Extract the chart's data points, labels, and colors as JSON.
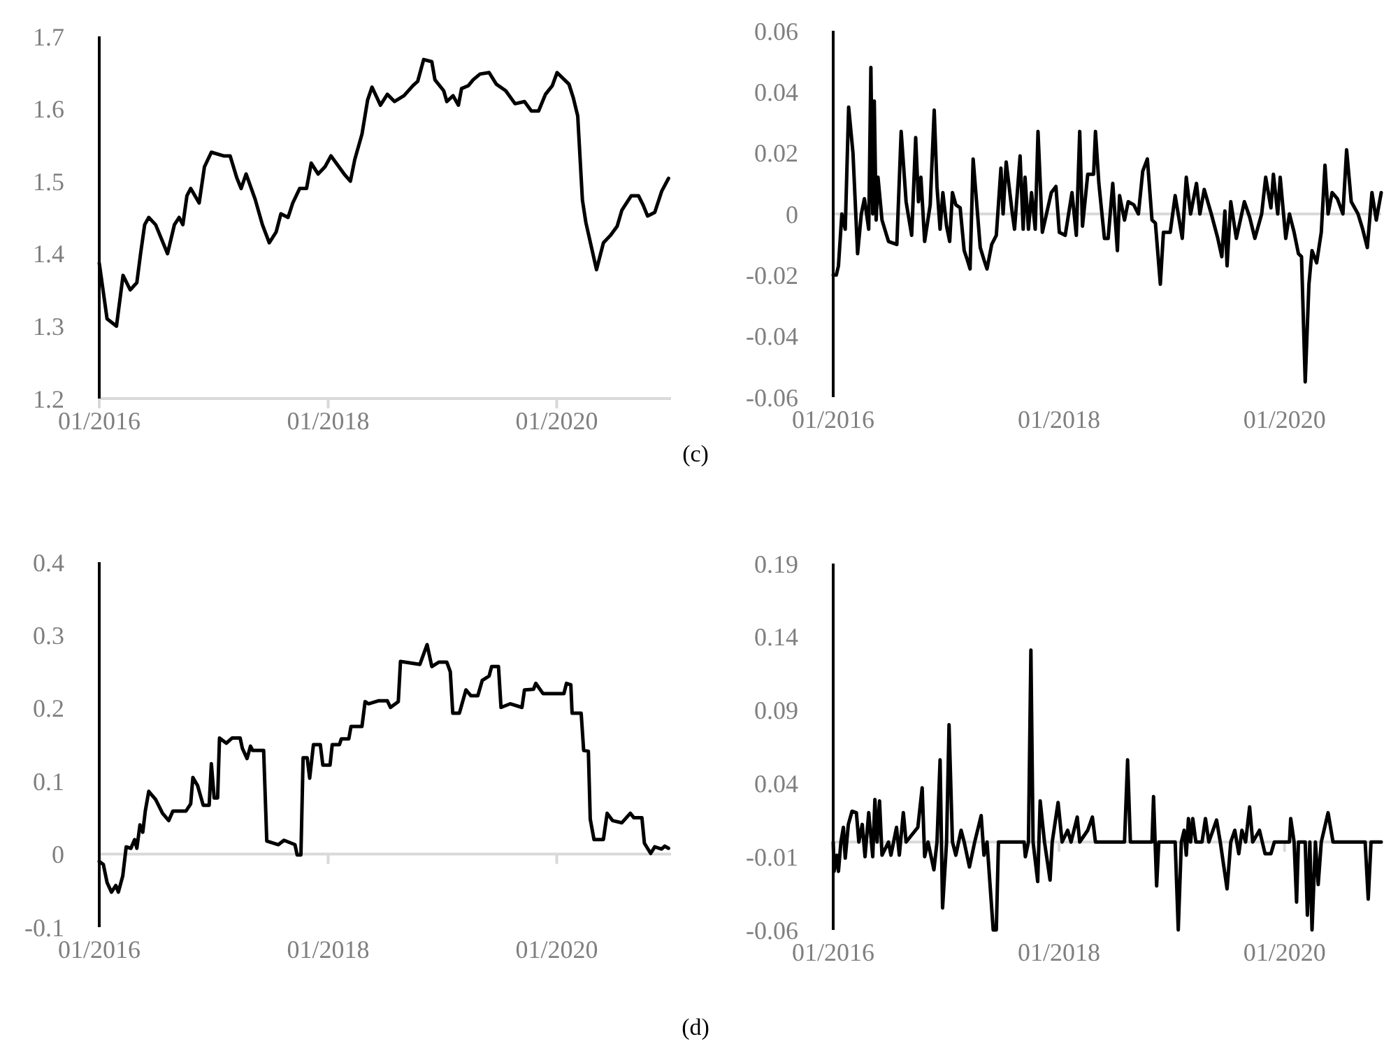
{
  "chart_data": [
    {
      "type": "line",
      "xlim": [
        "2016-01-01",
        "2020-12-31"
      ],
      "ylim": [
        1.2,
        1.7
      ],
      "yticks": [
        1.2,
        1.3,
        1.4,
        1.5,
        1.6,
        1.7
      ],
      "xticks": [
        {
          "value": "2016-01-01",
          "label": "01/2016"
        },
        {
          "value": "2018-01-01",
          "label": "01/2018"
        },
        {
          "value": "2020-01-01",
          "label": "01/2020"
        }
      ],
      "x": [
        "2016-01-01",
        "2016-01-26",
        "2016-02-25",
        "2016-03-17",
        "2016-04-09",
        "2016-04-30",
        "2016-05-12",
        "2016-05-25",
        "2016-06-07",
        "2016-06-29",
        "2016-08-06",
        "2016-08-28",
        "2016-09-12",
        "2016-09-24",
        "2016-10-07",
        "2016-10-19",
        "2016-11-15",
        "2016-12-02",
        "2016-12-24",
        "2017-02-01",
        "2017-02-22",
        "2017-03-15",
        "2017-03-29",
        "2017-04-14",
        "2017-05-13",
        "2017-06-05",
        "2017-06-27",
        "2017-07-19",
        "2017-08-03",
        "2017-08-26",
        "2017-09-10",
        "2017-10-02",
        "2017-10-24",
        "2017-11-08",
        "2017-11-30",
        "2017-12-22",
        "2018-01-10",
        "2018-02-21",
        "2018-03-13",
        "2018-03-27",
        "2018-04-19",
        "2018-05-07",
        "2018-05-21",
        "2018-06-17",
        "2018-07-09",
        "2018-08-01",
        "2018-08-31",
        "2018-09-29",
        "2018-10-14",
        "2018-11-02",
        "2018-11-28",
        "2018-12-08",
        "2019-01-05",
        "2019-01-15",
        "2019-02-04",
        "2019-02-21",
        "2019-03-03",
        "2019-03-25",
        "2019-04-09",
        "2019-05-01",
        "2019-05-30",
        "2019-06-22",
        "2019-07-22",
        "2019-08-21",
        "2019-09-20",
        "2019-10-12",
        "2019-11-04",
        "2019-11-26",
        "2019-12-18",
        "2020-01-02",
        "2020-02-09",
        "2020-02-23",
        "2020-03-08",
        "2020-03-23",
        "2020-04-03",
        "2020-05-07",
        "2020-05-29",
        "2020-06-20",
        "2020-07-12",
        "2020-07-27",
        "2020-08-26",
        "2020-09-18",
        "2020-10-03",
        "2020-10-17",
        "2020-11-09",
        "2020-12-01",
        "2020-12-23"
      ],
      "series": [
        {
          "color": "#000000",
          "values": [
            1.387,
            1.31,
            1.3,
            1.37,
            1.35,
            1.36,
            1.4,
            1.44,
            1.45,
            1.44,
            1.4,
            1.44,
            1.45,
            1.44,
            1.48,
            1.49,
            1.47,
            1.52,
            1.54,
            1.535,
            1.535,
            1.505,
            1.49,
            1.51,
            1.475,
            1.44,
            1.415,
            1.43,
            1.455,
            1.45,
            1.47,
            1.49,
            1.49,
            1.525,
            1.51,
            1.52,
            1.535,
            1.51,
            1.5,
            1.53,
            1.565,
            1.612,
            1.63,
            1.605,
            1.62,
            1.61,
            1.618,
            1.632,
            1.638,
            1.668,
            1.665,
            1.64,
            1.625,
            1.61,
            1.618,
            1.605,
            1.628,
            1.632,
            1.64,
            1.648,
            1.65,
            1.634,
            1.625,
            1.607,
            1.61,
            1.597,
            1.597,
            1.62,
            1.632,
            1.65,
            1.634,
            1.615,
            1.59,
            1.474,
            1.443,
            1.378,
            1.415,
            1.425,
            1.438,
            1.46,
            1.48,
            1.48,
            1.467,
            1.452,
            1.457,
            1.486,
            1.504
          ]
        }
      ]
    },
    {
      "type": "line",
      "xlim": [
        "2016-01-01",
        "2020-11-09"
      ],
      "ylim": [
        -0.06,
        0.06
      ],
      "yticks": [
        -0.06,
        -0.04,
        -0.02,
        0,
        0.02,
        0.04,
        0.06
      ],
      "xticks": [
        {
          "value": "2016-01-01",
          "label": "01/2016"
        },
        {
          "value": "2018-01-01",
          "label": "01/2018"
        },
        {
          "value": "2020-01-01",
          "label": "01/2020"
        }
      ],
      "annotations": [
        "(c)"
      ],
      "x": [
        "2016-01-01",
        "2016-01-11",
        "2016-01-18",
        "2016-01-29",
        "2016-02-09",
        "2016-02-20",
        "2016-03-05",
        "2016-03-20",
        "2016-04-01",
        "2016-04-11",
        "2016-04-25",
        "2016-05-02",
        "2016-05-08",
        "2016-05-13",
        "2016-05-19",
        "2016-05-25",
        "2016-06-07",
        "2016-06-28",
        "2016-07-25",
        "2016-08-08",
        "2016-08-24",
        "2016-09-11",
        "2016-09-24",
        "2016-10-03",
        "2016-10-11",
        "2016-10-23",
        "2016-11-10",
        "2016-11-23",
        "2016-12-02",
        "2016-12-12",
        "2016-12-21",
        "2017-01-02",
        "2017-01-12",
        "2017-01-21",
        "2017-02-01",
        "2017-02-15",
        "2017-02-28",
        "2017-03-10",
        "2017-03-19",
        "2017-03-29",
        "2017-04-21",
        "2017-05-03",
        "2017-05-13",
        "2017-05-28",
        "2017-06-12",
        "2017-06-27",
        "2017-07-04",
        "2017-07-14",
        "2017-08-03",
        "2017-08-10",
        "2017-08-28",
        "2017-09-07",
        "2017-09-13",
        "2017-09-24",
        "2017-10-04",
        "2017-10-16",
        "2017-10-25",
        "2017-11-08",
        "2017-12-07",
        "2017-12-22",
        "2018-01-02",
        "2018-01-21",
        "2018-02-12",
        "2018-02-26",
        "2018-03-09",
        "2018-03-18",
        "2018-04-04",
        "2018-04-23",
        "2018-04-29",
        "2018-05-10",
        "2018-05-28",
        "2018-06-09",
        "2018-06-24",
        "2018-07-09",
        "2018-07-16",
        "2018-08-01",
        "2018-08-13",
        "2018-08-31",
        "2018-09-15",
        "2018-09-29",
        "2018-10-14",
        "2018-10-29",
        "2018-11-09",
        "2018-11-25",
        "2018-12-05",
        "2018-12-27",
        "2019-01-12",
        "2019-02-04",
        "2019-02-17",
        "2019-03-03",
        "2019-03-22",
        "2019-04-02",
        "2019-04-16",
        "2019-05-09",
        "2019-05-30",
        "2019-06-12",
        "2019-06-22",
        "2019-06-29",
        "2019-07-11",
        "2019-07-29",
        "2019-08-24",
        "2019-09-10",
        "2019-09-27",
        "2019-10-19",
        "2019-11-01",
        "2019-11-18",
        "2019-11-26",
        "2019-12-10",
        "2019-12-18",
        "2020-01-05",
        "2020-01-17",
        "2020-02-01",
        "2020-02-15",
        "2020-02-25",
        "2020-03-08",
        "2020-03-20",
        "2020-03-30",
        "2020-04-14",
        "2020-04-29",
        "2020-05-11",
        "2020-05-21",
        "2020-06-03",
        "2020-06-20",
        "2020-07-08",
        "2020-07-20",
        "2020-08-04",
        "2020-08-26",
        "2020-09-10",
        "2020-09-25",
        "2020-10-10",
        "2020-10-24",
        "2020-11-09"
      ],
      "series": [
        {
          "color": "#000000",
          "values": [
            -0.02,
            -0.02,
            -0.017,
            0,
            -0.005,
            0.035,
            0.02,
            -0.013,
            0,
            0.005,
            -0.005,
            0.048,
            0,
            0.037,
            -0.002,
            0.012,
            -0.002,
            -0.009,
            -0.01,
            0.027,
            0.004,
            -0.007,
            0.025,
            0.004,
            0.012,
            -0.009,
            0.003,
            0.034,
            0.009,
            -0.005,
            0.007,
            -0.004,
            -0.009,
            0.007,
            0.003,
            0.002,
            -0.012,
            -0.015,
            -0.018,
            0.018,
            -0.011,
            -0.015,
            -0.018,
            -0.01,
            -0.007,
            0.015,
            0,
            0.017,
            0,
            -0.005,
            0.019,
            -0.005,
            0.012,
            -0.005,
            0.007,
            -0.005,
            0.027,
            -0.006,
            0.007,
            0.009,
            -0.006,
            -0.007,
            0.007,
            -0.007,
            0.027,
            -0.004,
            0.013,
            0.013,
            0.027,
            0.01,
            -0.008,
            -0.008,
            0.01,
            -0.012,
            0.006,
            -0.002,
            0.004,
            0.003,
            0,
            0.014,
            0.018,
            -0.002,
            -0.003,
            -0.023,
            -0.006,
            -0.006,
            0.006,
            -0.008,
            0.012,
            0,
            0.01,
            0,
            0.008,
            0,
            -0.008,
            -0.014,
            0.001,
            -0.017,
            0.004,
            -0.008,
            0.004,
            -0.001,
            -0.008,
            0,
            0.012,
            0.002,
            0.013,
            0,
            0.012,
            -0.008,
            0,
            -0.006,
            -0.013,
            -0.014,
            -0.055,
            -0.023,
            -0.012,
            -0.016,
            -0.006,
            0.016,
            0,
            0.007,
            0.005,
            0,
            0.021,
            0.004,
            0,
            -0.005,
            -0.011,
            0.007,
            -0.002,
            0.007
          ]
        }
      ]
    },
    {
      "type": "line",
      "xlim": [
        "2016-01-01",
        "2020-12-31"
      ],
      "ylim": [
        -0.1,
        0.4
      ],
      "yticks": [
        -0.1,
        0,
        0.1,
        0.2,
        0.3,
        0.4
      ],
      "xticks": [
        {
          "value": "2016-01-01",
          "label": "01/2016"
        },
        {
          "value": "2018-01-01",
          "label": "01/2018"
        },
        {
          "value": "2020-01-01",
          "label": "01/2020"
        }
      ],
      "x": [
        "2016-01-01",
        "2016-01-14",
        "2016-01-26",
        "2016-02-09",
        "2016-02-23",
        "2016-03-02",
        "2016-03-16",
        "2016-03-27",
        "2016-04-11",
        "2016-04-23",
        "2016-04-30",
        "2016-05-10",
        "2016-05-19",
        "2016-05-27",
        "2016-06-07",
        "2016-06-29",
        "2016-07-21",
        "2016-08-10",
        "2016-08-23",
        "2016-10-04",
        "2016-10-19",
        "2016-10-26",
        "2016-11-10",
        "2016-11-28",
        "2016-12-17",
        "2016-12-24",
        "2017-01-02",
        "2017-01-13",
        "2017-01-19",
        "2017-02-10",
        "2017-02-28",
        "2017-03-26",
        "2017-04-02",
        "2017-04-17",
        "2017-04-28",
        "2017-05-05",
        "2017-06-09",
        "2017-06-19",
        "2017-07-26",
        "2017-08-13",
        "2017-09-17",
        "2017-09-24",
        "2017-10-06",
        "2017-10-13",
        "2017-10-26",
        "2017-11-03",
        "2017-11-15",
        "2017-12-07",
        "2017-12-15",
        "2018-01-07",
        "2018-01-14",
        "2018-02-06",
        "2018-02-12",
        "2018-03-08",
        "2018-03-15",
        "2018-04-19",
        "2018-04-29",
        "2018-05-10",
        "2018-06-10",
        "2018-07-09",
        "2018-07-19",
        "2018-08-13",
        "2018-08-20",
        "2018-10-21",
        "2018-11-13",
        "2018-11-28",
        "2018-12-20",
        "2019-01-15",
        "2019-01-26",
        "2019-02-03",
        "2019-02-24",
        "2019-03-17",
        "2019-04-02",
        "2019-04-24",
        "2019-05-08",
        "2019-05-30",
        "2019-06-07",
        "2019-06-29",
        "2019-07-07",
        "2019-08-06",
        "2019-09-12",
        "2019-09-20",
        "2019-10-19",
        "2019-10-26",
        "2019-11-18",
        "2020-01-24",
        "2020-02-01",
        "2020-02-15",
        "2020-02-19",
        "2020-03-19",
        "2020-03-27",
        "2020-04-11",
        "2020-04-17",
        "2020-04-29",
        "2020-05-29",
        "2020-06-10",
        "2020-06-27",
        "2020-07-27",
        "2020-08-23",
        "2020-09-03",
        "2020-09-29",
        "2020-10-07",
        "2020-10-27",
        "2020-11-09",
        "2020-12-01",
        "2020-12-11",
        "2020-12-23"
      ],
      "series": [
        {
          "color": "#000000",
          "values": [
            -0.01,
            -0.014,
            -0.039,
            -0.052,
            -0.043,
            -0.052,
            -0.03,
            0.01,
            0.008,
            0.02,
            0.008,
            0.04,
            0.03,
            0.059,
            0.086,
            0.075,
            0.056,
            0.046,
            0.059,
            0.059,
            0.069,
            0.105,
            0.094,
            0.067,
            0.067,
            0.124,
            0.077,
            0.077,
            0.159,
            0.152,
            0.159,
            0.159,
            0.145,
            0.131,
            0.148,
            0.142,
            0.142,
            0.018,
            0.013,
            0.019,
            0.013,
            -0.001,
            -0.001,
            0.132,
            0.132,
            0.104,
            0.15,
            0.15,
            0.122,
            0.122,
            0.15,
            0.15,
            0.158,
            0.158,
            0.175,
            0.175,
            0.209,
            0.206,
            0.21,
            0.21,
            0.201,
            0.209,
            0.264,
            0.26,
            0.287,
            0.257,
            0.263,
            0.263,
            0.25,
            0.193,
            0.193,
            0.225,
            0.217,
            0.217,
            0.238,
            0.244,
            0.257,
            0.257,
            0.201,
            0.206,
            0.201,
            0.225,
            0.226,
            0.234,
            0.22,
            0.22,
            0.234,
            0.232,
            0.193,
            0.193,
            0.142,
            0.141,
            0.048,
            0.02,
            0.02,
            0.056,
            0.046,
            0.043,
            0.056,
            0.05,
            0.05,
            0.015,
            0.001,
            0.01,
            0.007,
            0.011,
            0.008
          ]
        }
      ]
    },
    {
      "type": "line",
      "xlim": [
        "2016-01-01",
        "2020-11-09"
      ],
      "ylim": [
        -0.06,
        0.19
      ],
      "yticks": [
        -0.06,
        -0.01,
        0.04,
        0.09,
        0.14,
        0.19
      ],
      "xticks": [
        {
          "value": "2016-01-01",
          "label": "01/2016"
        },
        {
          "value": "2018-01-01",
          "label": "01/2018"
        },
        {
          "value": "2020-01-01",
          "label": "01/2020"
        }
      ],
      "annotations": [
        "(d)"
      ],
      "x": [
        "2016-01-01",
        "2016-01-04",
        "2016-01-13",
        "2016-01-18",
        "2016-01-26",
        "2016-02-03",
        "2016-02-09",
        "2016-02-19",
        "2016-03-02",
        "2016-03-16",
        "2016-03-24",
        "2016-04-04",
        "2016-04-13",
        "2016-04-25",
        "2016-05-08",
        "2016-05-15",
        "2016-05-22",
        "2016-05-30",
        "2016-06-07",
        "2016-06-28",
        "2016-07-06",
        "2016-07-24",
        "2016-08-02",
        "2016-08-15",
        "2016-08-24",
        "2016-10-01",
        "2016-10-15",
        "2016-10-23",
        "2016-11-03",
        "2016-11-22",
        "2016-12-02",
        "2016-12-12",
        "2016-12-20",
        "2017-01-02",
        "2017-01-10",
        "2017-01-21",
        "2017-02-01",
        "2017-02-18",
        "2017-02-28",
        "2017-03-17",
        "2017-04-03",
        "2017-04-24",
        "2017-05-03",
        "2017-05-13",
        "2017-06-02",
        "2017-06-12",
        "2017-06-19",
        "2017-09-10",
        "2017-09-14",
        "2017-09-24",
        "2017-10-02",
        "2017-10-09",
        "2017-10-24",
        "2017-11-01",
        "2017-11-15",
        "2017-12-03",
        "2017-12-10",
        "2017-12-29",
        "2018-01-11",
        "2018-01-29",
        "2018-02-09",
        "2018-03-01",
        "2018-03-09",
        "2018-04-04",
        "2018-04-19",
        "2018-04-29",
        "2018-08-01",
        "2018-08-11",
        "2018-08-20",
        "2018-10-29",
        "2018-11-03",
        "2018-11-13",
        "2018-11-20",
        "2019-01-12",
        "2019-01-22",
        "2019-02-01",
        "2019-02-10",
        "2019-02-17",
        "2019-02-24",
        "2019-03-03",
        "2019-03-10",
        "2019-03-20",
        "2019-04-09",
        "2019-04-20",
        "2019-05-01",
        "2019-05-26",
        "2019-06-07",
        "2019-06-29",
        "2019-07-11",
        "2019-07-24",
        "2019-08-06",
        "2019-08-16",
        "2019-08-28",
        "2019-09-10",
        "2019-09-20",
        "2019-10-12",
        "2019-10-30",
        "2019-11-18",
        "2019-11-29",
        "2020-01-17",
        "2020-01-21",
        "2020-02-01",
        "2020-02-09",
        "2020-02-15",
        "2020-03-08",
        "2020-03-15",
        "2020-03-23",
        "2020-03-30",
        "2020-04-10",
        "2020-04-19",
        "2020-04-29",
        "2020-05-21",
        "2020-06-06",
        "2020-09-18",
        "2020-09-28",
        "2020-10-07",
        "2020-11-09"
      ],
      "series": [
        {
          "color": "#000000",
          "values": [
            0,
            -0.02,
            -0.009,
            -0.02,
            0,
            0.01,
            -0.011,
            0.012,
            0.021,
            0.02,
            0,
            0.012,
            -0.01,
            0.02,
            -0.01,
            0.029,
            0,
            0.028,
            -0.009,
            0,
            -0.009,
            0.01,
            -0.009,
            0.02,
            0,
            0.01,
            0.037,
            -0.01,
            0,
            -0.019,
            0,
            0.056,
            -0.045,
            0,
            0.08,
            0,
            -0.009,
            0.008,
            0,
            -0.017,
            0,
            0.018,
            -0.009,
            0,
            -0.06,
            -0.06,
            0,
            0,
            -0.01,
            0,
            0.131,
            0,
            -0.027,
            0.028,
            0,
            -0.026,
            0,
            0.027,
            0,
            0.008,
            0,
            0.017,
            0,
            0.008,
            0.017,
            0,
            0,
            0.056,
            0,
            0,
            0.031,
            -0.03,
            0,
            0,
            -0.06,
            0,
            0.008,
            -0.009,
            0.016,
            0,
            0.016,
            0,
            0,
            0.016,
            0,
            0.015,
            0,
            -0.032,
            0,
            0.008,
            -0.008,
            0.008,
            0,
            0.024,
            0,
            0.008,
            -0.008,
            -0.008,
            0,
            0,
            0.016,
            0,
            -0.041,
            0,
            0,
            -0.05,
            0,
            -0.06,
            0,
            -0.029,
            0,
            0.02,
            0,
            0,
            -0.039,
            0,
            0
          ]
        }
      ]
    }
  ]
}
